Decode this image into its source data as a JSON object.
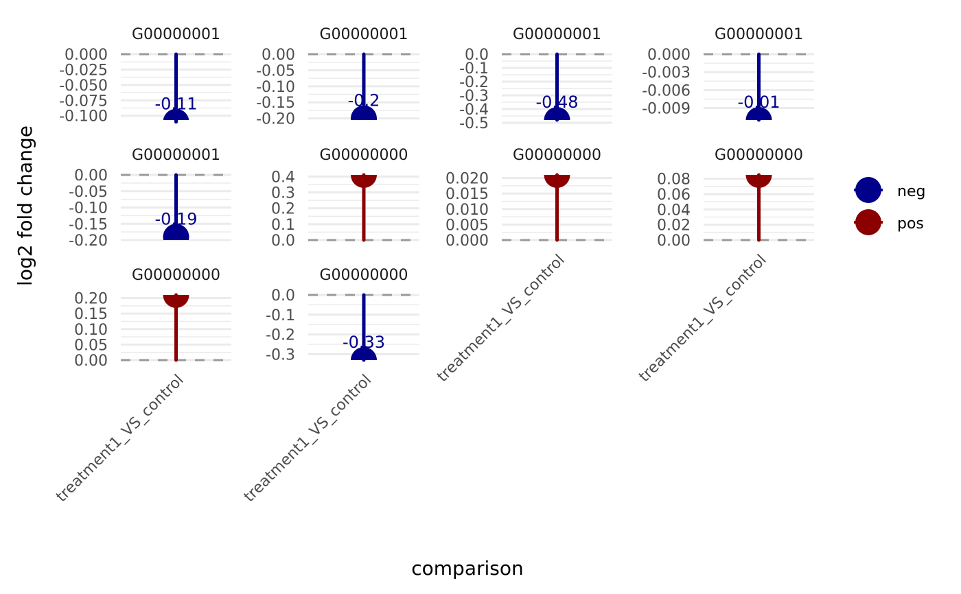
{
  "chart_data": {
    "type": "lollipop-facet",
    "xlabel": "comparison",
    "ylabel": "log2 fold change",
    "legend": {
      "position": "right",
      "entries": [
        {
          "key": "neg",
          "label": "neg",
          "color": "#00008B"
        },
        {
          "key": "pos",
          "label": "pos",
          "color": "#8B0000"
        }
      ]
    },
    "reference_line": {
      "y": 0,
      "style": "dashed",
      "color": "#999999"
    },
    "grid": true,
    "panels": [
      {
        "strip": "G00000001",
        "category": "treatment1_VS_control",
        "value": -0.11,
        "label": "-0.11",
        "group": "neg",
        "ylim": [
          -0.107,
          0
        ],
        "yticks": [
          0.0,
          -0.025,
          -0.05,
          -0.075,
          -0.1
        ],
        "ytick_labels": [
          "0.000",
          "-0.025",
          "-0.050",
          "-0.075",
          "-0.100"
        ],
        "show_label": true,
        "show_xtick": false
      },
      {
        "strip": "G00000001",
        "category": "treatment1_VS_control",
        "value": -0.2,
        "label": "-0.2",
        "group": "neg",
        "ylim": [
          -0.205,
          0
        ],
        "yticks": [
          0.0,
          -0.05,
          -0.1,
          -0.15,
          -0.2
        ],
        "ytick_labels": [
          "0.00",
          "-0.05",
          "-0.10",
          "-0.15",
          "-0.20"
        ],
        "show_label": true,
        "show_xtick": false
      },
      {
        "strip": "G00000001",
        "category": "treatment1_VS_control",
        "value": -0.48,
        "label": "-0.48",
        "group": "neg",
        "ylim": [
          -0.48,
          0
        ],
        "yticks": [
          0.0,
          -0.1,
          -0.2,
          -0.3,
          -0.4,
          -0.5
        ],
        "ytick_labels": [
          "0.0",
          "-0.1",
          "-0.2",
          "-0.3",
          "-0.4",
          "-0.5"
        ],
        "show_label": true,
        "show_xtick": false
      },
      {
        "strip": "G00000001",
        "category": "treatment1_VS_control",
        "value": -0.011,
        "label": "-0.01",
        "group": "neg",
        "ylim": [
          -0.011,
          0
        ],
        "yticks": [
          0.0,
          -0.003,
          -0.006,
          -0.009
        ],
        "ytick_labels": [
          "0.000",
          "-0.003",
          "-0.006",
          "-0.009"
        ],
        "show_label": true,
        "show_xtick": false
      },
      {
        "strip": "G00000001",
        "category": "treatment1_VS_control",
        "value": -0.19,
        "label": "-0.19",
        "group": "neg",
        "ylim": [
          -0.2,
          0
        ],
        "yticks": [
          0.0,
          -0.05,
          -0.1,
          -0.15,
          -0.2
        ],
        "ytick_labels": [
          "0.00",
          "-0.05",
          "-0.10",
          "-0.15",
          "-0.20"
        ],
        "show_label": true,
        "show_xtick": false
      },
      {
        "strip": "G00000000",
        "category": "treatment1_VS_control",
        "value": 0.41,
        "label": "",
        "group": "pos",
        "ylim": [
          0,
          0.41
        ],
        "yticks": [
          0.0,
          0.1,
          0.2,
          0.3,
          0.4
        ],
        "ytick_labels": [
          "0.0",
          "0.1",
          "0.2",
          "0.3",
          "0.4"
        ],
        "show_label": false,
        "show_xtick": false
      },
      {
        "strip": "G00000000",
        "category": "treatment1_VS_control",
        "value": 0.021,
        "label": "",
        "group": "pos",
        "ylim": [
          0,
          0.021
        ],
        "yticks": [
          0.0,
          0.005,
          0.01,
          0.015,
          0.02
        ],
        "ytick_labels": [
          "0.000",
          "0.005",
          "0.010",
          "0.015",
          "0.020"
        ],
        "show_label": false,
        "show_xtick": true
      },
      {
        "strip": "G00000000",
        "category": "treatment1_VS_control",
        "value": 0.085,
        "label": "",
        "group": "pos",
        "ylim": [
          0,
          0.085
        ],
        "yticks": [
          0.0,
          0.02,
          0.04,
          0.06,
          0.08
        ],
        "ytick_labels": [
          "0.00",
          "0.02",
          "0.04",
          "0.06",
          "0.08"
        ],
        "show_label": false,
        "show_xtick": true
      },
      {
        "strip": "G00000000",
        "category": "treatment1_VS_control",
        "value": 0.21,
        "label": "",
        "group": "pos",
        "ylim": [
          0,
          0.21
        ],
        "yticks": [
          0.0,
          0.05,
          0.1,
          0.15,
          0.2
        ],
        "ytick_labels": [
          "0.00",
          "0.05",
          "0.10",
          "0.15",
          "0.20"
        ],
        "show_label": false,
        "show_xtick": true
      },
      {
        "strip": "G00000000",
        "category": "treatment1_VS_control",
        "value": -0.33,
        "label": "-0.33",
        "group": "neg",
        "ylim": [
          -0.33,
          0
        ],
        "yticks": [
          0.0,
          -0.1,
          -0.2,
          -0.3
        ],
        "ytick_labels": [
          "0.0",
          "-0.1",
          "-0.2",
          "-0.3"
        ],
        "show_label": true,
        "show_xtick": true
      }
    ]
  }
}
